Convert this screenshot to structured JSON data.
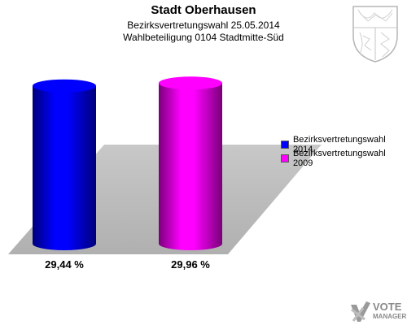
{
  "header": {
    "title": "Stadt Oberhausen",
    "subtitle1": "Bezirksvertretungswahl 25.05.2014",
    "subtitle2": "Wahlbeteiligung 0104 Stadtmitte-Süd"
  },
  "chart_data": {
    "type": "bar",
    "style": "3d-cylinder",
    "title": "Stadt Oberhausen",
    "categories": [
      "Bezirksvertretungswahl 2014",
      "Bezirksvertretungswahl 2009"
    ],
    "values": [
      29.44,
      29.96
    ],
    "value_labels": [
      "29,44 %",
      "29,96 %"
    ],
    "colors": [
      "#0000ff",
      "#ff00ff"
    ],
    "unit": "%",
    "ylim": [
      0,
      35
    ],
    "legend_position": "right"
  },
  "legend": {
    "items": [
      {
        "label": "Bezirksvertretungswahl 2014",
        "color": "#0000ff"
      },
      {
        "label": "Bezirksvertretungswahl 2009",
        "color": "#ff00ff"
      }
    ]
  },
  "brand": {
    "line1": "VOTE",
    "line2": "MANAGER",
    "icon": "vote-manager-logo"
  },
  "crest": {
    "icon": "nrw-coat-of-arms-icon"
  }
}
